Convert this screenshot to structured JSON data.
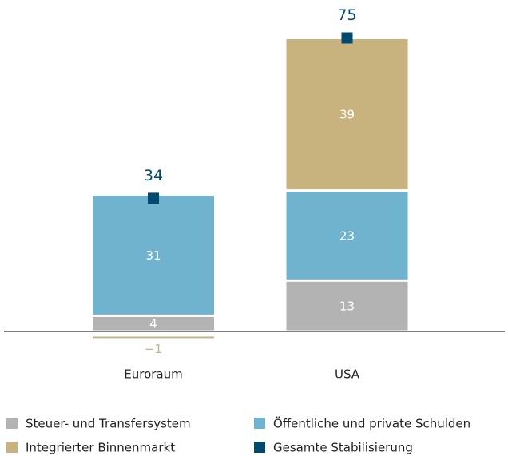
{
  "chart_data": {
    "type": "bar",
    "stacked": true,
    "categories": [
      "Euroraum",
      "USA"
    ],
    "series": [
      {
        "name": "Steuer- und Transfersystem",
        "color": "#b3b3b3",
        "values": [
          4,
          13
        ]
      },
      {
        "name": "Öffentliche und private Schulden",
        "color": "#6fb3cf",
        "values": [
          31,
          23
        ]
      },
      {
        "name": "Integrierter Binnenmarkt",
        "color": "#c8b27e",
        "values": [
          -1,
          39
        ],
        "value_labels": [
          "−1",
          "39"
        ]
      },
      {
        "name": "Gesamte Stabilisierung",
        "color": "#004a6e",
        "values": [
          34,
          75
        ],
        "marker": "square"
      }
    ]
  }
}
